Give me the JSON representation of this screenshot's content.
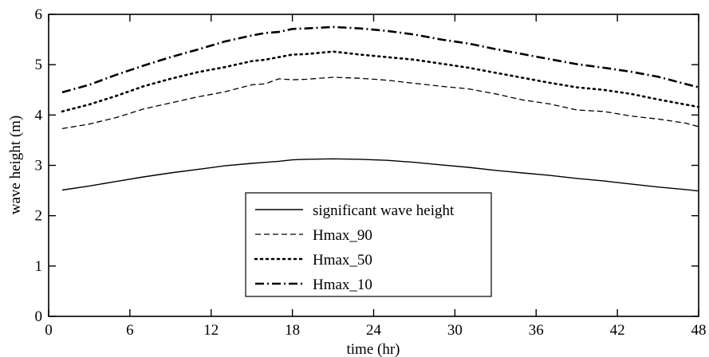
{
  "chart_data": {
    "type": "line",
    "xlabel": "time (hr)",
    "ylabel": "wave height (m)",
    "xlim": [
      0,
      48
    ],
    "ylim": [
      0,
      6
    ],
    "xticks": [
      0,
      6,
      12,
      18,
      24,
      30,
      36,
      42,
      48
    ],
    "yticks": [
      0,
      1,
      2,
      3,
      4,
      5,
      6
    ],
    "grid": false,
    "legend_position": "bottom-center",
    "x": [
      1,
      3,
      5,
      7,
      9,
      11,
      13,
      15,
      16,
      17,
      18,
      19,
      21,
      23,
      25,
      27,
      29,
      31,
      33,
      35,
      37,
      39,
      41,
      43,
      45,
      47,
      48
    ],
    "series": [
      {
        "name": "significant wave height",
        "style": "solid",
        "values": [
          2.51,
          2.59,
          2.68,
          2.77,
          2.85,
          2.92,
          2.99,
          3.04,
          3.06,
          3.08,
          3.11,
          3.12,
          3.13,
          3.12,
          3.1,
          3.06,
          3.01,
          2.96,
          2.9,
          2.85,
          2.8,
          2.74,
          2.69,
          2.63,
          2.57,
          2.52,
          2.49
        ]
      },
      {
        "name": "Hmax_90",
        "style": "dashed",
        "values": [
          3.73,
          3.82,
          3.95,
          4.12,
          4.24,
          4.36,
          4.46,
          4.6,
          4.62,
          4.72,
          4.7,
          4.71,
          4.75,
          4.73,
          4.69,
          4.63,
          4.57,
          4.52,
          4.42,
          4.3,
          4.22,
          4.1,
          4.07,
          3.98,
          3.92,
          3.84,
          3.77
        ]
      },
      {
        "name": "Hmax_50",
        "style": "dotted",
        "values": [
          4.07,
          4.21,
          4.38,
          4.57,
          4.72,
          4.85,
          4.95,
          5.07,
          5.1,
          5.15,
          5.2,
          5.21,
          5.26,
          5.2,
          5.15,
          5.1,
          5.02,
          4.94,
          4.84,
          4.74,
          4.64,
          4.55,
          4.5,
          4.42,
          4.31,
          4.21,
          4.16
        ]
      },
      {
        "name": "Hmax_10",
        "style": "dash-dot",
        "values": [
          4.45,
          4.6,
          4.8,
          4.98,
          5.15,
          5.3,
          5.46,
          5.58,
          5.63,
          5.65,
          5.71,
          5.72,
          5.75,
          5.72,
          5.67,
          5.6,
          5.5,
          5.42,
          5.31,
          5.21,
          5.11,
          5.01,
          4.94,
          4.86,
          4.76,
          4.62,
          4.55
        ]
      }
    ]
  }
}
